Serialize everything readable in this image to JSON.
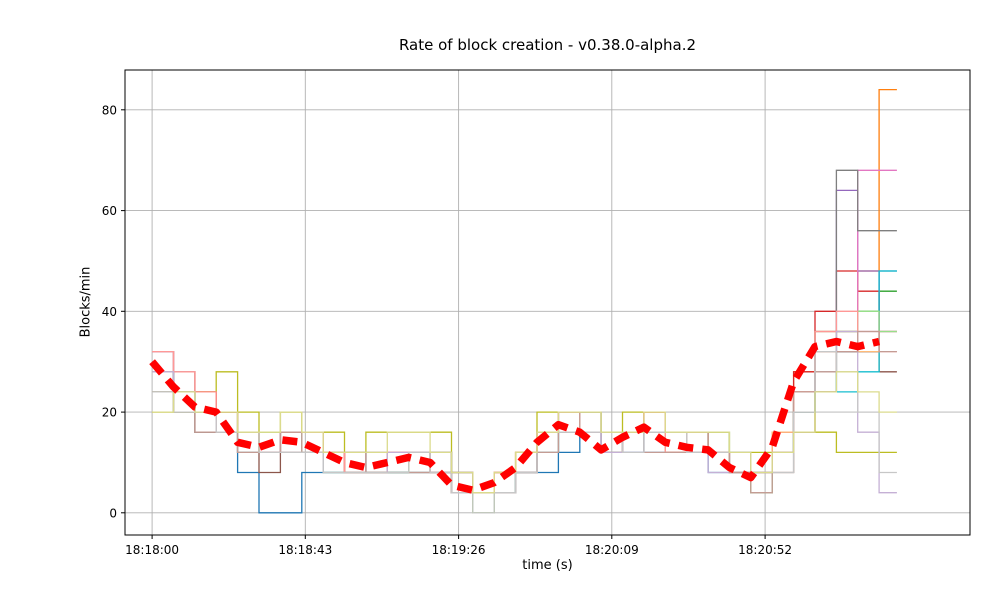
{
  "chart_data": {
    "type": "line",
    "title": "Rate of block creation  -  v0.38.0-alpha.2",
    "xlabel": "time (s)",
    "ylabel": "Blocks/min",
    "grid": true,
    "legend": "none",
    "x_ticks": [
      0,
      43,
      86,
      129,
      172
    ],
    "x_tick_labels": [
      "18:18:00",
      "18:18:43",
      "18:19:26",
      "18:20:09",
      "18:20:52"
    ],
    "y_ticks": [
      0,
      20,
      40,
      60,
      80
    ],
    "y_tick_labels": [
      "0",
      "20",
      "40",
      "60",
      "80"
    ],
    "xlim": [
      -7.6,
      229.5
    ],
    "ylim": [
      -4.4,
      87.9
    ],
    "t": [
      0,
      6,
      12,
      18,
      24,
      30,
      36,
      42,
      48,
      54,
      60,
      66,
      72,
      78,
      84,
      90,
      96,
      102,
      108,
      114,
      120,
      126,
      132,
      138,
      144,
      150,
      156,
      162,
      168,
      174,
      180,
      186,
      192,
      198,
      204
    ],
    "series": [
      {
        "color": "#1f77b4",
        "values": [
          28,
          24,
          20,
          16,
          8,
          0,
          0,
          8,
          8,
          8,
          8,
          8,
          8,
          8,
          8,
          4,
          4,
          8,
          8,
          12,
          16,
          12,
          12,
          12,
          12,
          12,
          8,
          8,
          8,
          12,
          20,
          28,
          32,
          32,
          48
        ]
      },
      {
        "color": "#ff7f0e",
        "values": [
          32,
          28,
          24,
          20,
          16,
          12,
          16,
          16,
          12,
          8,
          8,
          12,
          12,
          8,
          4,
          4,
          8,
          8,
          16,
          20,
          20,
          16,
          16,
          20,
          16,
          12,
          12,
          8,
          8,
          16,
          28,
          36,
          36,
          48,
          84
        ]
      },
      {
        "color": "#2ca02c",
        "values": [
          28,
          24,
          20,
          20,
          16,
          12,
          16,
          12,
          12,
          12,
          8,
          8,
          12,
          12,
          4,
          4,
          4,
          8,
          12,
          16,
          20,
          16,
          16,
          16,
          16,
          12,
          16,
          12,
          8,
          12,
          24,
          32,
          36,
          40,
          44
        ]
      },
      {
        "color": "#d62728",
        "values": [
          32,
          28,
          24,
          20,
          12,
          12,
          16,
          16,
          12,
          8,
          8,
          12,
          12,
          8,
          8,
          4,
          8,
          12,
          16,
          20,
          16,
          12,
          16,
          20,
          12,
          12,
          12,
          8,
          4,
          16,
          28,
          40,
          48,
          44,
          36
        ]
      },
      {
        "color": "#9467bd",
        "values": [
          28,
          24,
          20,
          16,
          16,
          16,
          12,
          12,
          12,
          12,
          8,
          8,
          12,
          8,
          4,
          0,
          4,
          8,
          12,
          16,
          16,
          12,
          16,
          16,
          16,
          16,
          12,
          8,
          8,
          12,
          20,
          32,
          64,
          48,
          36
        ]
      },
      {
        "color": "#8c564b",
        "values": [
          24,
          20,
          16,
          16,
          12,
          8,
          12,
          16,
          12,
          8,
          8,
          8,
          12,
          12,
          4,
          4,
          4,
          8,
          12,
          16,
          16,
          16,
          16,
          16,
          12,
          12,
          12,
          12,
          8,
          8,
          16,
          24,
          32,
          32,
          28
        ]
      },
      {
        "color": "#e377c2",
        "values": [
          32,
          24,
          20,
          16,
          12,
          12,
          16,
          12,
          12,
          8,
          8,
          12,
          8,
          8,
          4,
          4,
          8,
          8,
          16,
          20,
          20,
          16,
          12,
          16,
          16,
          12,
          12,
          8,
          8,
          16,
          24,
          32,
          36,
          68,
          68
        ]
      },
      {
        "color": "#7f7f7f",
        "values": [
          28,
          20,
          16,
          20,
          16,
          12,
          12,
          12,
          8,
          8,
          8,
          8,
          12,
          8,
          4,
          0,
          4,
          8,
          12,
          16,
          16,
          12,
          16,
          16,
          12,
          16,
          12,
          8,
          4,
          12,
          24,
          36,
          68,
          56,
          56
        ]
      },
      {
        "color": "#bcbd22",
        "values": [
          20,
          20,
          24,
          28,
          20,
          16,
          20,
          16,
          16,
          12,
          16,
          16,
          16,
          16,
          8,
          0,
          8,
          12,
          20,
          20,
          20,
          16,
          20,
          20,
          16,
          16,
          16,
          12,
          12,
          12,
          20,
          16,
          12,
          12,
          12
        ]
      },
      {
        "color": "#17becf",
        "values": [
          28,
          24,
          20,
          16,
          12,
          12,
          16,
          12,
          8,
          8,
          12,
          8,
          8,
          8,
          4,
          4,
          4,
          8,
          12,
          20,
          16,
          12,
          12,
          16,
          16,
          12,
          12,
          8,
          8,
          12,
          20,
          28,
          24,
          28,
          48
        ]
      },
      {
        "color": "#aec7e8",
        "values": [
          32,
          28,
          20,
          16,
          12,
          12,
          12,
          16,
          12,
          12,
          8,
          8,
          12,
          12,
          8,
          4,
          4,
          8,
          12,
          16,
          20,
          16,
          12,
          12,
          16,
          12,
          12,
          12,
          8,
          12,
          24,
          32,
          36,
          36,
          36
        ]
      },
      {
        "color": "#ffbb78",
        "values": [
          28,
          24,
          20,
          20,
          16,
          12,
          12,
          12,
          12,
          8,
          8,
          12,
          8,
          8,
          4,
          4,
          8,
          12,
          16,
          20,
          16,
          12,
          16,
          16,
          12,
          16,
          12,
          8,
          8,
          16,
          24,
          32,
          36,
          32,
          36
        ]
      },
      {
        "color": "#98df8a",
        "values": [
          24,
          20,
          20,
          16,
          12,
          16,
          16,
          12,
          8,
          8,
          8,
          8,
          12,
          8,
          4,
          0,
          4,
          8,
          12,
          16,
          20,
          16,
          16,
          16,
          16,
          12,
          12,
          8,
          4,
          12,
          20,
          28,
          36,
          40,
          36
        ]
      },
      {
        "color": "#ff9896",
        "values": [
          32,
          28,
          24,
          16,
          16,
          12,
          16,
          16,
          12,
          8,
          12,
          12,
          12,
          8,
          4,
          4,
          8,
          8,
          16,
          20,
          16,
          16,
          16,
          20,
          12,
          12,
          12,
          8,
          8,
          12,
          24,
          36,
          40,
          36,
          32
        ]
      },
      {
        "color": "#c5b0d5",
        "values": [
          28,
          24,
          20,
          16,
          12,
          12,
          12,
          12,
          8,
          8,
          8,
          12,
          12,
          8,
          4,
          4,
          4,
          8,
          12,
          16,
          16,
          12,
          12,
          16,
          16,
          12,
          8,
          8,
          8,
          12,
          20,
          28,
          36,
          16,
          4
        ]
      },
      {
        "color": "#c49c94",
        "values": [
          24,
          20,
          16,
          16,
          12,
          12,
          16,
          12,
          12,
          12,
          8,
          8,
          8,
          12,
          8,
          4,
          4,
          8,
          12,
          16,
          20,
          16,
          16,
          12,
          12,
          16,
          12,
          8,
          4,
          12,
          24,
          28,
          32,
          36,
          32
        ]
      },
      {
        "color": "#c7c7c7",
        "values": [
          24,
          20,
          20,
          16,
          16,
          12,
          12,
          12,
          8,
          8,
          8,
          8,
          12,
          8,
          4,
          0,
          4,
          8,
          16,
          16,
          16,
          16,
          12,
          16,
          16,
          12,
          12,
          12,
          8,
          8,
          20,
          32,
          28,
          20,
          8
        ]
      },
      {
        "color": "#dbdb8d",
        "values": [
          20,
          24,
          20,
          20,
          16,
          16,
          20,
          16,
          12,
          12,
          12,
          16,
          16,
          12,
          8,
          4,
          8,
          12,
          16,
          20,
          20,
          16,
          16,
          20,
          16,
          16,
          16,
          12,
          8,
          12,
          16,
          24,
          28,
          24,
          20
        ]
      }
    ],
    "mean": {
      "color": "#ff0000",
      "style": "thick-dashed",
      "values": [
        30,
        25,
        21,
        20,
        14,
        13,
        14.5,
        14,
        12,
        10,
        9,
        10,
        11,
        10,
        5.5,
        4.5,
        6,
        9,
        14,
        17.5,
        16,
        12.5,
        15,
        17,
        14,
        13,
        12.5,
        9,
        7,
        13,
        26,
        33,
        34,
        33,
        34
      ]
    }
  }
}
